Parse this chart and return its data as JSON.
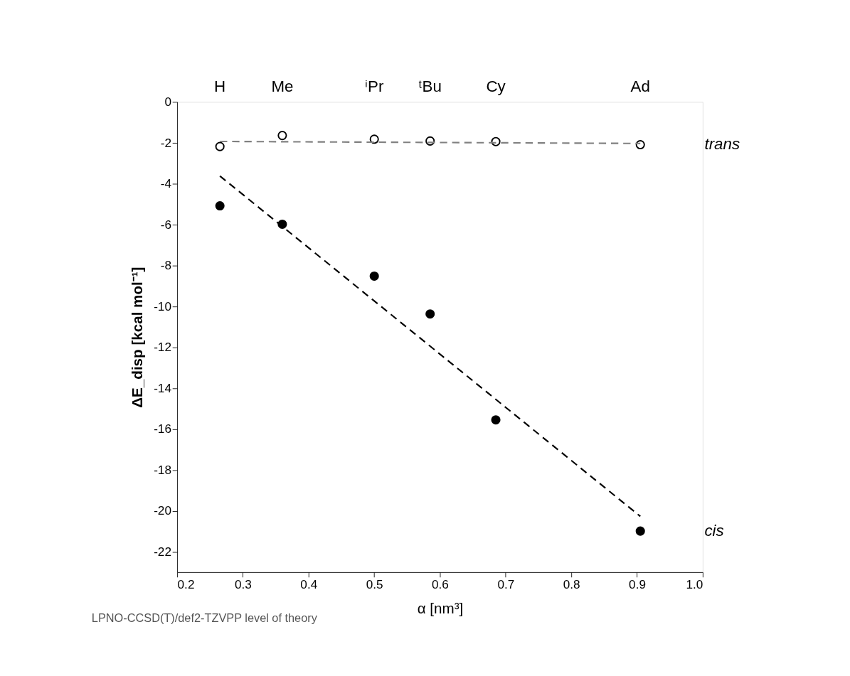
{
  "chart_data": {
    "type": "scatter",
    "xlabel": "α [nm³]",
    "ylabel": "ΔE_disp [kcal mol⁻¹]",
    "xlim": [
      0.2,
      1.0
    ],
    "xticks": [
      0.2,
      0.3,
      0.4,
      0.5,
      0.6,
      0.7,
      0.8,
      0.9,
      {
        "value": 1.0,
        "label": "1.0"
      }
    ],
    "ylim": [
      -23,
      0
    ],
    "yticks": [
      0,
      -2,
      -4,
      -6,
      -8,
      -10,
      -12,
      -14,
      -16,
      -18,
      -20,
      -22
    ],
    "grid": false,
    "legend": false,
    "marker": "circle",
    "series": [
      {
        "name": "trans",
        "color": "#000000",
        "x": [
          0.265,
          0.36,
          0.5,
          0.585,
          0.685,
          0.905
        ],
        "values": [
          -2.18,
          -1.64,
          -1.82,
          -1.91,
          -1.94,
          -2.09
        ]
      },
      {
        "type": "line",
        "marker": "none",
        "line_style": "dashed",
        "color": "#808080",
        "x": [
          0.265,
          0.905
        ],
        "values": [
          -1.93,
          -2.03
        ]
      },
      {
        "name": "cis",
        "color": "#000000",
        "x": [
          0.265,
          0.36,
          0.5,
          0.585,
          0.685,
          0.905
        ],
        "values": [
          -5.08,
          -5.98,
          -8.52,
          -10.37,
          -15.55,
          -20.99
        ]
      },
      {
        "type": "line",
        "marker": "none",
        "line_style": "dashed",
        "color": "#000000",
        "x": [
          0.265,
          0.905
        ],
        "values": [
          -3.62,
          -20.27
        ]
      }
    ],
    "annotations": [
      "H",
      "Me",
      "ⁱPr",
      "ᵗBu",
      "Cy",
      "Ad",
      "LPNO-CCSD(T)/def2-TZVPP level of theory"
    ]
  }
}
